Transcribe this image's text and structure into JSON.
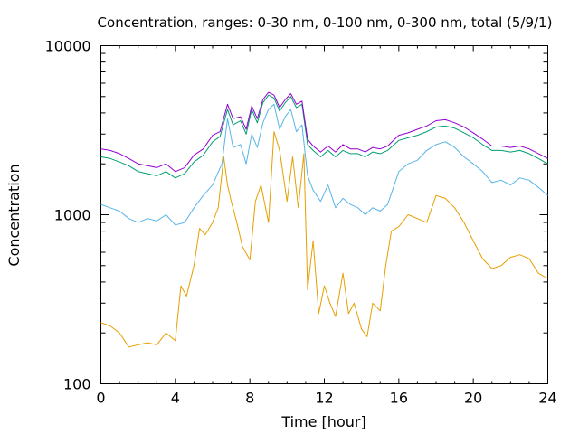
{
  "chart_data": {
    "type": "line",
    "title": "Concentration, ranges: 0-30 nm, 0-100 nm, 0-300 nm, total (5/9/1)",
    "xlabel": "Time [hour]",
    "ylabel": "Concentration",
    "xlim": [
      0,
      24
    ],
    "ylim": [
      100,
      10000
    ],
    "yscale": "log",
    "grid": false,
    "legend": "none",
    "xticks": [
      0,
      4,
      8,
      12,
      16,
      20,
      24
    ],
    "xtick_labels": [
      "0",
      "4",
      "8",
      "12",
      "16",
      "20",
      "24"
    ],
    "yticks": [
      100,
      1000,
      10000
    ],
    "ytick_labels": [
      "100",
      "1000",
      "10000"
    ],
    "series": [
      {
        "color": "#e69f00",
        "x": [
          0,
          0.5,
          1,
          1.5,
          2,
          2.5,
          3,
          3.5,
          4,
          4.3,
          4.6,
          5,
          5.3,
          5.6,
          6,
          6.3,
          6.6,
          6.8,
          7,
          7.3,
          7.6,
          8,
          8.3,
          8.6,
          9,
          9.3,
          9.6,
          10,
          10.3,
          10.6,
          10.9,
          11.1,
          11.4,
          11.7,
          12,
          12.3,
          12.6,
          13,
          13.3,
          13.6,
          14,
          14.3,
          14.6,
          15,
          15.3,
          15.6,
          16,
          16.5,
          17,
          17.5,
          18,
          18.5,
          19,
          19.5,
          20,
          20.5,
          21,
          21.5,
          22,
          22.5,
          23,
          23.5,
          24
        ],
        "values": [
          230,
          220,
          200,
          165,
          170,
          175,
          170,
          200,
          180,
          380,
          330,
          500,
          830,
          760,
          900,
          1100,
          2200,
          1500,
          1200,
          900,
          650,
          540,
          1200,
          1500,
          900,
          3100,
          2400,
          1200,
          2200,
          1100,
          2300,
          360,
          700,
          260,
          380,
          300,
          250,
          450,
          260,
          300,
          210,
          190,
          300,
          270,
          500,
          800,
          850,
          1000,
          950,
          900,
          1300,
          1250,
          1100,
          900,
          700,
          550,
          480,
          500,
          560,
          580,
          550,
          450,
          420
        ]
      },
      {
        "color": "#56b4e9",
        "x": [
          0,
          0.5,
          1,
          1.5,
          2,
          2.5,
          3,
          3.5,
          4,
          4.5,
          5,
          5.5,
          6,
          6.5,
          6.8,
          7.1,
          7.5,
          7.8,
          8.1,
          8.4,
          8.7,
          9,
          9.3,
          9.6,
          9.9,
          10.2,
          10.5,
          10.8,
          11.1,
          11.4,
          11.8,
          12.2,
          12.6,
          13,
          13.4,
          13.8,
          14.2,
          14.6,
          15,
          15.4,
          16,
          16.5,
          17,
          17.5,
          18,
          18.5,
          19,
          19.5,
          20,
          20.5,
          21,
          21.5,
          22,
          22.5,
          23,
          23.5,
          24
        ],
        "values": [
          1150,
          1100,
          1050,
          950,
          900,
          950,
          920,
          1000,
          870,
          900,
          1100,
          1300,
          1500,
          2000,
          3700,
          2500,
          2600,
          2000,
          3000,
          2500,
          3500,
          4200,
          4500,
          3200,
          3800,
          4200,
          3100,
          3400,
          1700,
          1400,
          1200,
          1500,
          1100,
          1250,
          1150,
          1100,
          1000,
          1100,
          1050,
          1150,
          1800,
          2000,
          2100,
          2400,
          2600,
          2700,
          2500,
          2200,
          2000,
          1800,
          1550,
          1600,
          1500,
          1650,
          1600,
          1450,
          1300
        ]
      },
      {
        "color": "#009e73",
        "x": [
          0,
          0.5,
          1,
          1.5,
          2,
          2.5,
          3,
          3.5,
          4,
          4.5,
          5,
          5.5,
          6,
          6.4,
          6.8,
          7.1,
          7.5,
          7.8,
          8.1,
          8.4,
          8.7,
          9,
          9.3,
          9.6,
          9.9,
          10.2,
          10.5,
          10.8,
          11.1,
          11.4,
          11.8,
          12.2,
          12.6,
          13,
          13.4,
          13.8,
          14.2,
          14.6,
          15,
          15.4,
          16,
          16.5,
          17,
          17.5,
          18,
          18.5,
          19,
          19.5,
          20,
          20.5,
          21,
          21.5,
          22,
          22.5,
          23,
          23.5,
          24
        ],
        "values": [
          2200,
          2150,
          2050,
          1950,
          1800,
          1750,
          1700,
          1800,
          1650,
          1750,
          2050,
          2250,
          2700,
          2900,
          4200,
          3400,
          3600,
          3000,
          4200,
          3500,
          4600,
          5100,
          4900,
          4100,
          4600,
          5000,
          4300,
          4500,
          2600,
          2400,
          2200,
          2400,
          2200,
          2400,
          2300,
          2300,
          2200,
          2350,
          2300,
          2400,
          2750,
          2850,
          2950,
          3100,
          3300,
          3350,
          3250,
          3050,
          2850,
          2600,
          2400,
          2400,
          2350,
          2400,
          2300,
          2150,
          2000
        ]
      },
      {
        "color": "#9400d3",
        "x": [
          0,
          0.5,
          1,
          1.5,
          2,
          2.5,
          3,
          3.5,
          4,
          4.5,
          5,
          5.5,
          6,
          6.4,
          6.8,
          7.1,
          7.5,
          7.8,
          8.1,
          8.4,
          8.7,
          9,
          9.3,
          9.6,
          9.9,
          10.2,
          10.5,
          10.8,
          11.1,
          11.4,
          11.8,
          12.2,
          12.6,
          13,
          13.4,
          13.8,
          14.2,
          14.6,
          15,
          15.4,
          16,
          16.5,
          17,
          17.5,
          18,
          18.5,
          19,
          19.5,
          20,
          20.5,
          21,
          21.5,
          22,
          22.5,
          23,
          23.5,
          24
        ],
        "values": [
          2450,
          2400,
          2300,
          2150,
          2000,
          1950,
          1900,
          2000,
          1800,
          1900,
          2250,
          2450,
          2950,
          3100,
          4500,
          3700,
          3800,
          3200,
          4400,
          3700,
          4800,
          5300,
          5100,
          4300,
          4800,
          5200,
          4500,
          4700,
          2800,
          2550,
          2350,
          2550,
          2350,
          2600,
          2450,
          2450,
          2350,
          2500,
          2450,
          2550,
          2950,
          3050,
          3200,
          3350,
          3600,
          3650,
          3500,
          3300,
          3050,
          2800,
          2550,
          2550,
          2500,
          2550,
          2450,
          2300,
          2150
        ]
      }
    ]
  }
}
